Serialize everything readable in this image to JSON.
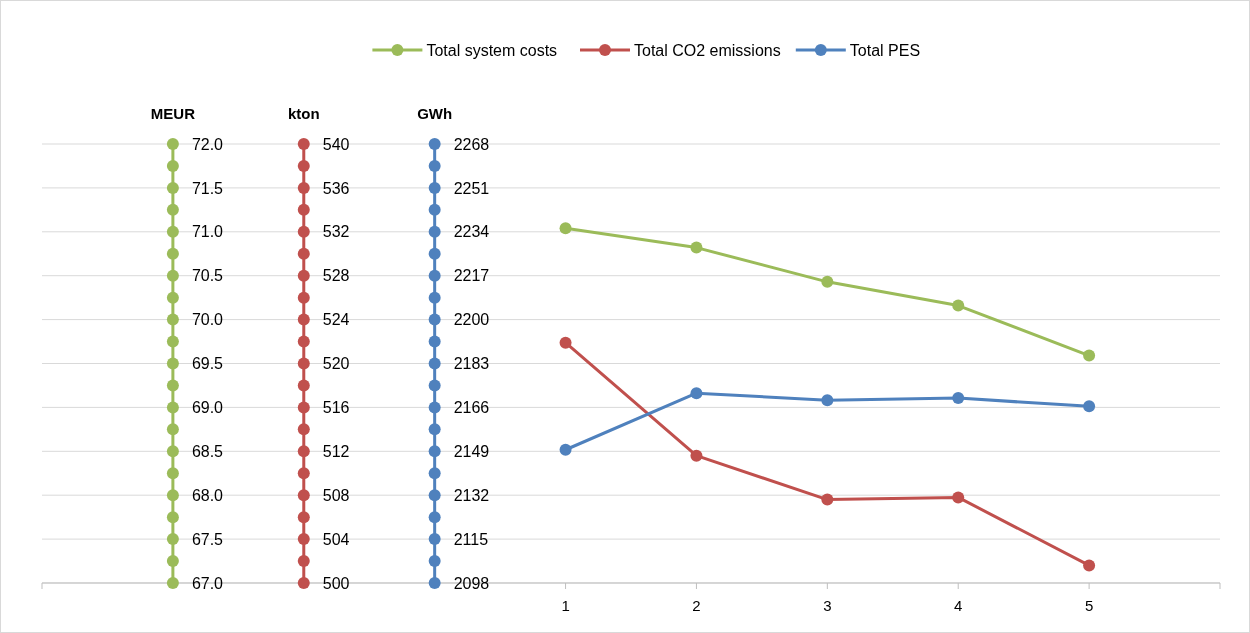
{
  "chart_data": {
    "type": "line",
    "marker": "circle",
    "grid": "y",
    "legend": "top",
    "x": [
      1,
      2,
      3,
      4,
      5
    ],
    "xlim": [
      -3,
      6
    ],
    "xticks": [
      1,
      2,
      3,
      4,
      5
    ],
    "ylabel": "MEUR",
    "y2label": "kton",
    "y3label": "GWh",
    "ylim": [
      67,
      72
    ],
    "yticks": [
      {
        "value": 67,
        "label": "67.0"
      },
      {
        "value": 67.5,
        "label": "67.5"
      },
      {
        "value": 68,
        "label": "68.0"
      },
      {
        "value": 68.5,
        "label": "68.5"
      },
      {
        "value": 69,
        "label": "69.0"
      },
      {
        "value": 69.5,
        "label": "69.5"
      },
      {
        "value": 70,
        "label": "70.0"
      },
      {
        "value": 70.5,
        "label": "70.5"
      },
      {
        "value": 71,
        "label": "71.0"
      },
      {
        "value": 71.5,
        "label": "71.5"
      },
      {
        "value": 72,
        "label": "72.0"
      }
    ],
    "y2lim": [
      500,
      540
    ],
    "y2ticks": [
      500,
      504,
      508,
      512,
      516,
      520,
      524,
      528,
      532,
      536,
      540
    ],
    "y3lim": [
      2098,
      2268
    ],
    "y3ticks": [
      2098,
      2115,
      2132,
      2149,
      2166,
      2183,
      2200,
      2217,
      2234,
      2251,
      2268
    ],
    "series": [
      {
        "name": "Total system costs",
        "color": "#9bbb59",
        "axis": "y",
        "values": [
          71.04,
          70.82,
          70.43,
          70.16,
          69.59
        ]
      },
      {
        "name": "Total CO2 emissions",
        "color": "#c0504d",
        "axis": "y2",
        "values": [
          521.9,
          511.6,
          507.6,
          507.8,
          501.6
        ]
      },
      {
        "name": "Total PES",
        "color": "#4f81bd",
        "axis": "y3",
        "values": [
          2149.6,
          2171.5,
          2168.8,
          2169.6,
          2166.4
        ]
      },
      {
        "color": "#9bbb59",
        "axis": "y",
        "x": [
          -2,
          -2,
          -2,
          -2,
          -2,
          -2,
          -2,
          -2,
          -2,
          -2,
          -2,
          -2,
          -2,
          -2,
          -2,
          -2,
          -2,
          -2,
          -2,
          -2,
          -2
        ],
        "values": [
          67,
          67.25,
          67.5,
          67.75,
          68,
          68.25,
          68.5,
          68.75,
          69,
          69.25,
          69.5,
          69.75,
          70,
          70.25,
          70.5,
          70.75,
          71,
          71.25,
          71.5,
          71.75,
          72
        ]
      },
      {
        "color": "#c0504d",
        "axis": "y2",
        "x": [
          -1,
          -1,
          -1,
          -1,
          -1,
          -1,
          -1,
          -1,
          -1,
          -1,
          -1,
          -1,
          -1,
          -1,
          -1,
          -1,
          -1,
          -1,
          -1,
          -1,
          -1
        ],
        "values": [
          500,
          502,
          504,
          506,
          508,
          510,
          512,
          514,
          516,
          518,
          520,
          522,
          524,
          526,
          528,
          530,
          532,
          534,
          536,
          538,
          540
        ]
      },
      {
        "color": "#4f81bd",
        "axis": "y3",
        "x": [
          0,
          0,
          0,
          0,
          0,
          0,
          0,
          0,
          0,
          0,
          0,
          0,
          0,
          0,
          0,
          0,
          0,
          0,
          0,
          0,
          0
        ],
        "values": [
          2098,
          2106.5,
          2115,
          2123.5,
          2132,
          2140.5,
          2149,
          2157.5,
          2166,
          2174.5,
          2183,
          2191.5,
          2200,
          2208.5,
          2217,
          2225.5,
          2234,
          2242.5,
          2251,
          2259.5,
          2268
        ]
      }
    ]
  }
}
